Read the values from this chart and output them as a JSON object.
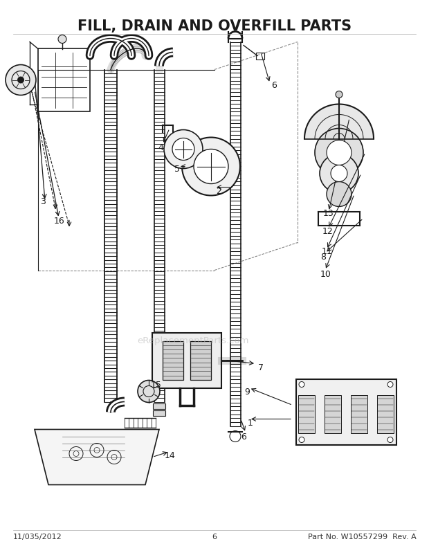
{
  "title": "FILL, DRAIN AND OVERFILL PARTS",
  "title_fontsize": 15,
  "title_fontweight": "bold",
  "footer_left": "11/035/2012",
  "footer_center": "6",
  "footer_right": "Part No. W10557299  Rev. A",
  "footer_fontsize": 8,
  "bg_color": "#ffffff",
  "line_color": "#1a1a1a",
  "watermark": "eReplacementParts.com",
  "fig_w": 6.2,
  "fig_h": 8.03,
  "dpi": 100
}
